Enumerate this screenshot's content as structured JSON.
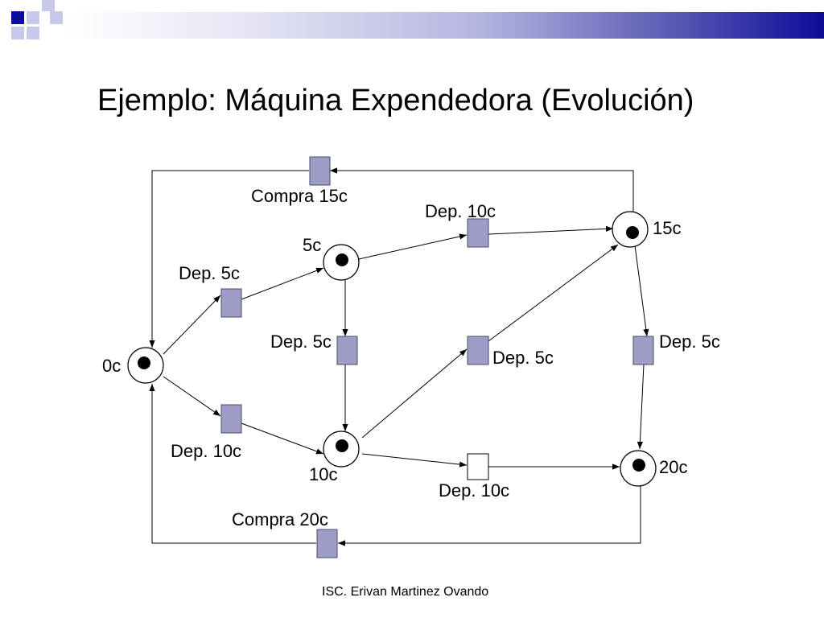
{
  "slide": {
    "title": "Ejemplo: Máquina Expendedora (Evolución)",
    "footer": "ISC. Erivan Martinez Ovando",
    "accent_color": "#0c0c9a",
    "transition_color": "#9d9dc7"
  },
  "diagram": {
    "places": {
      "p0": "0c",
      "p5": "5c",
      "p10": "10c",
      "p15": "15c",
      "p20": "20c"
    },
    "transitions": {
      "compra15": "Compra 15c",
      "compra20": "Compra 20c",
      "dep5_0_5": "Dep. 5c",
      "dep10_0_10": "Dep. 10c",
      "dep5_5_10": "Dep. 5c",
      "dep10_5_15": "Dep. 10c",
      "dep5_10_15": "Dep. 5c",
      "dep10_10_20": "Dep. 10c",
      "dep5_15_20": "Dep. 5c"
    }
  }
}
